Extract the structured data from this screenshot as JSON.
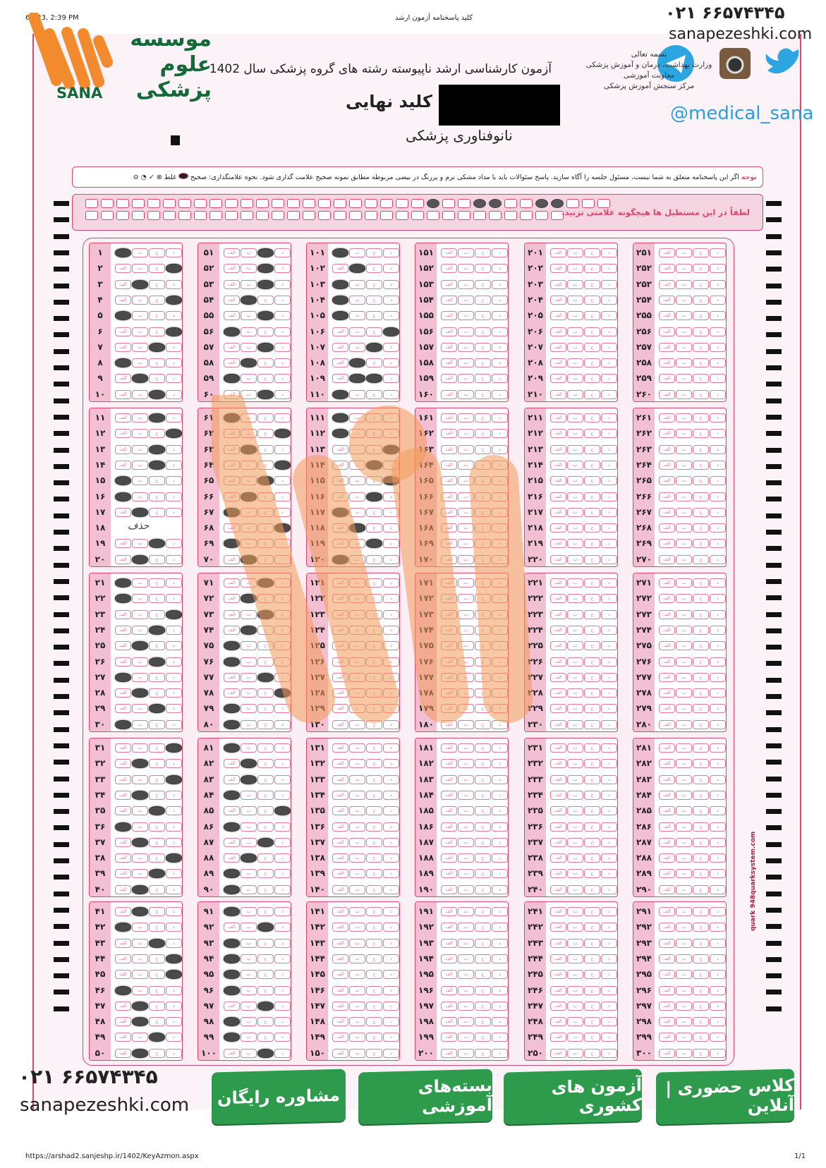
{
  "browser": {
    "timestamp": "6/  /23, 2:39 PM",
    "page_title": "کلید پاسخنامه آزمون ارشد",
    "url": "https://arshad2.sanjeshp.ir/1402/KeyAzmon.aspx",
    "page_count": "1/1"
  },
  "branding": {
    "logo_text": "موسسه علوم پزشکی SANA",
    "logo_latin": "SANA",
    "logo_arabic": "موسسه علوم پزشکی",
    "phone": "۰۲۱ ۶۶۵۷۴۳۴۵",
    "website": "sanapezeshki.com",
    "social_handle": "@medical_sana",
    "social_icons": [
      "telegram-icon",
      "instagram-icon",
      "twitter-icon"
    ],
    "brand_orange": "#f28a2e",
    "brand_green": "#1e8a44"
  },
  "header": {
    "exam_title": "آزمون کارشناسی ارشد ناپیوسته رشته های گروه پزشکی سال 1402",
    "key_label": "کلید نهایی",
    "subject": "نانوفناوری پزشکی",
    "ministry": [
      "بسمه تعالی",
      "وزارت بهداشت، درمان و آموزش پزشکی",
      "معاونت آموزشی",
      "مرکز سنجش آموزش پزشکی"
    ]
  },
  "notice": {
    "label": "توجه",
    "text": "اگر این پاسخنامه متعلق به شما نیست، مسئول جلسه را آگاه سازید. پاسخ سئوالات باید با مداد مشکی نرم و پررنگ در بیضی مربوطه مطابق نمونه صحیح علامت گذاری شود.",
    "marking_label": "نحوه علامتگذاری:",
    "correct_label": "صحیح",
    "wrong_label": "غلط"
  },
  "strip_warning": "لطفاً در این مستطیل ها هیچگونه علامتی نزنید.",
  "answer_sheet": {
    "total_questions": 300,
    "option_labels": [
      "الف",
      "ب",
      "ج",
      "د"
    ],
    "deleted_label": "حذف",
    "answers": [
      1,
      4,
      2,
      4,
      1,
      4,
      3,
      1,
      2,
      3,
      3,
      4,
      3,
      3,
      1,
      1,
      2,
      0,
      3,
      2,
      1,
      1,
      4,
      3,
      2,
      3,
      1,
      2,
      3,
      1,
      4,
      2,
      4,
      2,
      3,
      1,
      2,
      4,
      3,
      2,
      2,
      1,
      3,
      4,
      4,
      1,
      2,
      2,
      3,
      2,
      3,
      3,
      3,
      2,
      3,
      1,
      3,
      2,
      1,
      3,
      1,
      4,
      2,
      4,
      3,
      2,
      1,
      4,
      1,
      2,
      3,
      2,
      3,
      2,
      1,
      1,
      3,
      4,
      1,
      1,
      1,
      2,
      2,
      1,
      4,
      1,
      3,
      2,
      1,
      1,
      1,
      3,
      1,
      1,
      1,
      1,
      3,
      1,
      1,
      3,
      1,
      2,
      1,
      1,
      1,
      4,
      3,
      2,
      [
        2,
        3
      ],
      1,
      1,
      1,
      4,
      3,
      4,
      3,
      1,
      2,
      3,
      1
    ]
  },
  "side_text": "quark 948quarksystem.com",
  "promos": [
    "مشاوره رایگان",
    "بسته‌های آموزشی",
    "آزمون های کشوری",
    "کلاس حضوری | آنلاین"
  ]
}
